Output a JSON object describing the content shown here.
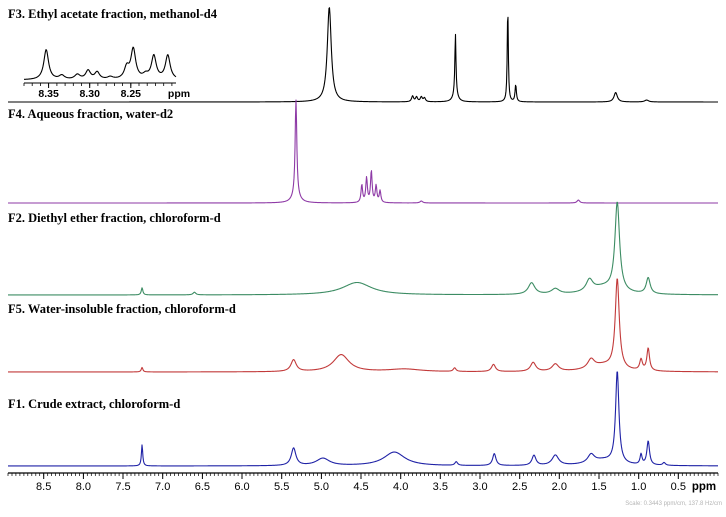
{
  "chart_data": {
    "type": "line",
    "subtype": "stacked NMR spectra",
    "x_axis": {
      "unit_label": "ppm",
      "reversed": true,
      "range": [
        8.95,
        0.0
      ],
      "ticks": [
        8.5,
        8.0,
        7.5,
        7.0,
        6.5,
        6.0,
        5.5,
        5.0,
        4.5,
        4.0,
        3.5,
        3.0,
        2.5,
        2.0,
        1.5,
        1.0,
        0.5
      ],
      "tick_labels": [
        "8.5",
        "8.0",
        "7.5",
        "7.0",
        "6.5",
        "6.0",
        "5.5",
        "5.0",
        "4.5",
        "4.0",
        "3.5",
        "3.0",
        "2.5",
        "2.0",
        "1.5",
        "1.0",
        "0.5"
      ],
      "minor_tick_step": 0.05
    },
    "scale_note": "Scale: 0.3443 ppm/cm, 137.8 Hz/cm",
    "series": [
      {
        "name": "F3. Ethyl acetate fraction, methanol-d4",
        "color": "#000000",
        "peaks": [
          {
            "ppm": 4.9,
            "height": 1.0,
            "width": 0.03
          },
          {
            "ppm": 3.85,
            "height": 0.06,
            "width": 0.015
          },
          {
            "ppm": 3.8,
            "height": 0.05,
            "width": 0.015
          },
          {
            "ppm": 3.74,
            "height": 0.05,
            "width": 0.015
          },
          {
            "ppm": 3.7,
            "height": 0.04,
            "width": 0.015
          },
          {
            "ppm": 3.31,
            "height": 0.62,
            "width": 0.008
          },
          {
            "ppm": 3.31,
            "height": 0.1,
            "width": 0.03
          },
          {
            "ppm": 2.65,
            "height": 1.0,
            "width": 0.008
          },
          {
            "ppm": 2.55,
            "height": 0.18,
            "width": 0.01
          },
          {
            "ppm": 1.29,
            "height": 0.1,
            "width": 0.025
          },
          {
            "ppm": 0.9,
            "height": 0.02,
            "width": 0.03
          }
        ]
      },
      {
        "name": "F4. Aqueous fraction, water-d2",
        "color": "#8e3aa6",
        "peaks": [
          {
            "ppm": 5.32,
            "height": 1.0,
            "width": 0.012
          },
          {
            "ppm": 5.32,
            "height": 0.08,
            "width": 0.05
          },
          {
            "ppm": 4.49,
            "height": 0.18,
            "width": 0.012
          },
          {
            "ppm": 4.43,
            "height": 0.25,
            "width": 0.012
          },
          {
            "ppm": 4.37,
            "height": 0.32,
            "width": 0.012
          },
          {
            "ppm": 4.31,
            "height": 0.17,
            "width": 0.012
          },
          {
            "ppm": 4.26,
            "height": 0.12,
            "width": 0.012
          },
          {
            "ppm": 3.74,
            "height": 0.02,
            "width": 0.02
          },
          {
            "ppm": 1.76,
            "height": 0.03,
            "width": 0.02
          }
        ]
      },
      {
        "name": "F2. Diethyl ether fraction, chloroform-d",
        "color": "#3c8c63",
        "peaks": [
          {
            "ppm": 7.26,
            "height": 0.08,
            "width": 0.012
          },
          {
            "ppm": 6.6,
            "height": 0.03,
            "width": 0.02
          },
          {
            "ppm": 4.55,
            "height": 0.14,
            "width": 0.22
          },
          {
            "ppm": 2.35,
            "height": 0.13,
            "width": 0.05
          },
          {
            "ppm": 2.05,
            "height": 0.06,
            "width": 0.06
          },
          {
            "ppm": 1.62,
            "height": 0.13,
            "width": 0.05
          },
          {
            "ppm": 1.27,
            "height": 1.0,
            "width": 0.035
          },
          {
            "ppm": 0.88,
            "height": 0.18,
            "width": 0.03
          },
          {
            "ppm": 1.45,
            "height": 0.08,
            "width": 0.2
          }
        ]
      },
      {
        "name": "F5. Water-insoluble fraction, chloroform-d",
        "color": "#c23a3a",
        "peaks": [
          {
            "ppm": 7.26,
            "height": 0.05,
            "width": 0.012
          },
          {
            "ppm": 5.35,
            "height": 0.13,
            "width": 0.04
          },
          {
            "ppm": 4.75,
            "height": 0.19,
            "width": 0.12
          },
          {
            "ppm": 3.95,
            "height": 0.03,
            "width": 0.25
          },
          {
            "ppm": 3.32,
            "height": 0.04,
            "width": 0.02
          },
          {
            "ppm": 2.83,
            "height": 0.08,
            "width": 0.03
          },
          {
            "ppm": 2.33,
            "height": 0.1,
            "width": 0.04
          },
          {
            "ppm": 2.05,
            "height": 0.08,
            "width": 0.05
          },
          {
            "ppm": 1.6,
            "height": 0.1,
            "width": 0.05
          },
          {
            "ppm": 1.27,
            "height": 1.0,
            "width": 0.03
          },
          {
            "ppm": 0.97,
            "height": 0.12,
            "width": 0.02
          },
          {
            "ppm": 0.88,
            "height": 0.25,
            "width": 0.02
          },
          {
            "ppm": 1.45,
            "height": 0.07,
            "width": 0.2
          }
        ]
      },
      {
        "name": "F1. Crude extract, chloroform-d",
        "color": "#1f22a6",
        "peaks": [
          {
            "ppm": 7.26,
            "height": 0.23,
            "width": 0.01
          },
          {
            "ppm": 5.35,
            "height": 0.19,
            "width": 0.035
          },
          {
            "ppm": 4.98,
            "height": 0.08,
            "width": 0.1
          },
          {
            "ppm": 4.08,
            "height": 0.15,
            "width": 0.16
          },
          {
            "ppm": 3.3,
            "height": 0.04,
            "width": 0.02
          },
          {
            "ppm": 2.82,
            "height": 0.13,
            "width": 0.025
          },
          {
            "ppm": 2.32,
            "height": 0.11,
            "width": 0.03
          },
          {
            "ppm": 2.05,
            "height": 0.11,
            "width": 0.05
          },
          {
            "ppm": 1.6,
            "height": 0.09,
            "width": 0.05
          },
          {
            "ppm": 1.27,
            "height": 1.0,
            "width": 0.025
          },
          {
            "ppm": 0.97,
            "height": 0.11,
            "width": 0.015
          },
          {
            "ppm": 0.88,
            "height": 0.26,
            "width": 0.02
          },
          {
            "ppm": 0.68,
            "height": 0.03,
            "width": 0.02
          },
          {
            "ppm": 1.45,
            "height": 0.06,
            "width": 0.2
          }
        ]
      }
    ],
    "inset": {
      "parent_series": "F3. Ethyl acetate fraction, methanol-d4",
      "range": [
        8.38,
        8.195
      ],
      "ticks": [
        8.35,
        8.3,
        8.25
      ],
      "tick_labels": [
        "8.35",
        "8.30",
        "8.25"
      ],
      "unit_label": "ppm",
      "peaks": [
        {
          "ppm": 8.353,
          "height": 0.75,
          "width": 0.0035
        },
        {
          "ppm": 8.334,
          "height": 0.1,
          "width": 0.004
        },
        {
          "ppm": 8.315,
          "height": 0.12,
          "width": 0.004
        },
        {
          "ppm": 8.302,
          "height": 0.22,
          "width": 0.0035
        },
        {
          "ppm": 8.291,
          "height": 0.18,
          "width": 0.0035
        },
        {
          "ppm": 8.275,
          "height": 0.06,
          "width": 0.004
        },
        {
          "ppm": 8.255,
          "height": 0.28,
          "width": 0.0035
        },
        {
          "ppm": 8.247,
          "height": 0.75,
          "width": 0.0035
        },
        {
          "ppm": 8.232,
          "height": 0.1,
          "width": 0.004
        },
        {
          "ppm": 8.222,
          "height": 0.58,
          "width": 0.0035
        },
        {
          "ppm": 8.205,
          "height": 0.6,
          "width": 0.0035
        }
      ]
    }
  }
}
